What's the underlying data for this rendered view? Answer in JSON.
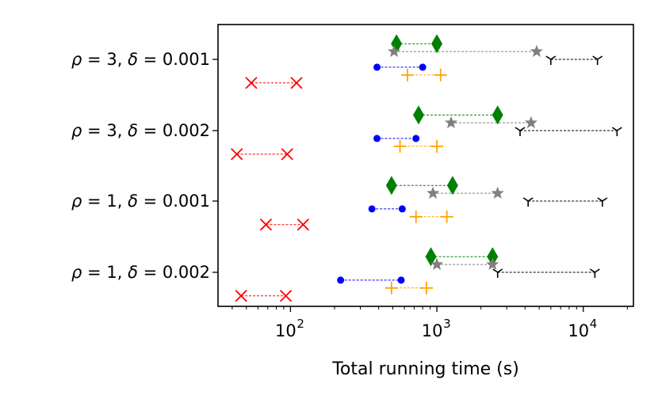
{
  "chart_data": {
    "type": "scatter",
    "title": "",
    "xlabel": "Total running time (s)",
    "ylabel": "",
    "xscale": "log",
    "xlim": [
      32,
      22000
    ],
    "x_ticks": [
      {
        "value": 100,
        "base": "10",
        "exp": "2"
      },
      {
        "value": 1000,
        "base": "10",
        "exp": "3"
      },
      {
        "value": 10000,
        "base": "10",
        "exp": "4"
      }
    ],
    "categories": [
      {
        "rho": "3",
        "delta": "0.001"
      },
      {
        "rho": "3",
        "delta": "0.002"
      },
      {
        "rho": "1",
        "delta": "0.001"
      },
      {
        "rho": "1",
        "delta": "0.002"
      }
    ],
    "grid": false,
    "legend": "none",
    "series": [
      {
        "marker": "diamond",
        "color": "#008000",
        "offset": 0.22,
        "intervals": [
          [
            530,
            1000
          ],
          [
            750,
            2600
          ],
          [
            490,
            1280
          ],
          [
            910,
            2400
          ]
        ]
      },
      {
        "marker": "star",
        "color": "#808080",
        "offset": 0.11,
        "intervals": [
          [
            510,
            4800
          ],
          [
            1250,
            4400
          ],
          [
            940,
            2600
          ],
          [
            1000,
            2400
          ]
        ]
      },
      {
        "marker": "tri",
        "color": "#000000",
        "offset": 0.0,
        "intervals": [
          [
            6000,
            12500
          ],
          [
            3700,
            17000
          ],
          [
            4200,
            13500
          ],
          [
            2600,
            12000
          ]
        ]
      },
      {
        "marker": "circle",
        "color": "#0000ff",
        "offset": -0.11,
        "intervals": [
          [
            390,
            800
          ],
          [
            390,
            720
          ],
          [
            360,
            580
          ],
          [
            220,
            570
          ]
        ]
      },
      {
        "marker": "plus",
        "color": "#ffa500",
        "offset": -0.22,
        "intervals": [
          [
            630,
            1060
          ],
          [
            560,
            1000
          ],
          [
            720,
            1170
          ],
          [
            490,
            850
          ]
        ]
      },
      {
        "marker": "x",
        "color": "#ff0000",
        "offset": -0.33,
        "intervals": [
          [
            54,
            110
          ],
          [
            43,
            95
          ],
          [
            68,
            122
          ],
          [
            46,
            93
          ]
        ]
      }
    ]
  }
}
